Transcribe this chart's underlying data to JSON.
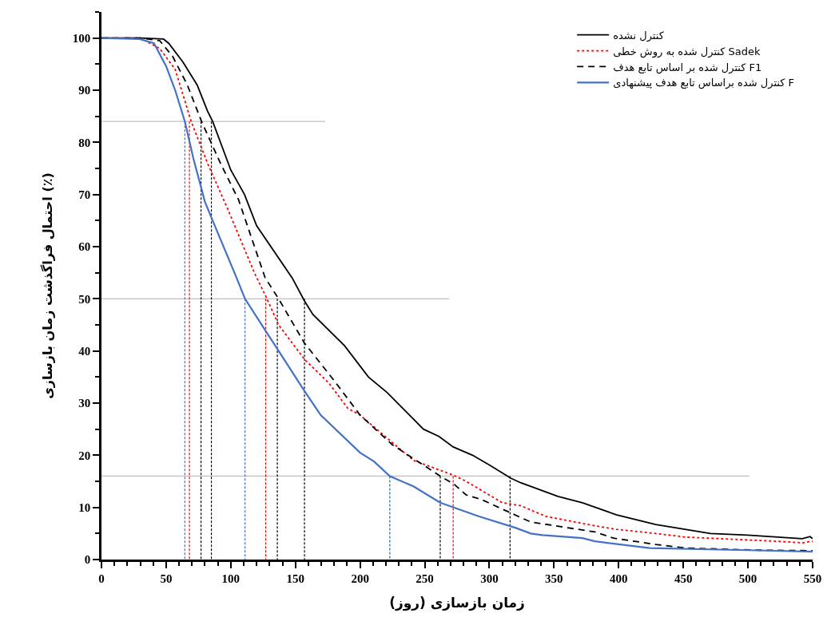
{
  "chart_data": {
    "type": "line",
    "xlabel": "زمان بازسازی (روز)",
    "ylabel": "احتمال فراگذشت زمان بازسازی (٪)",
    "xlim": [
      0,
      550
    ],
    "xticks": [
      0,
      50,
      100,
      150,
      200,
      250,
      300,
      350,
      400,
      450,
      500,
      550
    ],
    "ylim": [
      0,
      105
    ],
    "yticks": [
      0,
      10,
      20,
      30,
      40,
      50,
      60,
      70,
      80,
      90,
      100
    ],
    "legend": "top right",
    "marker": "none",
    "series": [
      {
        "color": "#bfbfbf",
        "line_style": "solid",
        "x": [
          0,
          173
        ],
        "values": [
          84,
          84
        ]
      },
      {
        "color": "#bfbfbf",
        "line_style": "solid",
        "x": [
          0,
          269
        ],
        "values": [
          50,
          50
        ]
      },
      {
        "color": "#bfbfbf",
        "line_style": "solid",
        "x": [
          0,
          501
        ],
        "values": [
          16,
          16
        ]
      },
      {
        "color": "#4472c4",
        "line_style": "dashed",
        "x": [
          64.5,
          64.5
        ],
        "values": [
          84,
          0
        ]
      },
      {
        "color": "#ff0000",
        "line_style": "dashed",
        "x": [
          68,
          68
        ],
        "values": [
          84,
          0
        ]
      },
      {
        "color": "#000000",
        "line_style": "dashed",
        "x": [
          77,
          77
        ],
        "values": [
          84,
          0
        ]
      },
      {
        "color": "#000000",
        "line_style": "dashed",
        "x": [
          85,
          85
        ],
        "values": [
          84,
          0
        ]
      },
      {
        "color": "#4472c4",
        "line_style": "dashed",
        "x": [
          111,
          111
        ],
        "values": [
          50,
          0
        ]
      },
      {
        "color": "#ff0000",
        "line_style": "dashed",
        "x": [
          127,
          127
        ],
        "values": [
          50,
          0
        ]
      },
      {
        "color": "#000000",
        "line_style": "dashed",
        "x": [
          136,
          136
        ],
        "values": [
          50,
          0
        ]
      },
      {
        "color": "#000000",
        "line_style": "dashed",
        "x": [
          157,
          157
        ],
        "values": [
          50,
          0
        ]
      },
      {
        "color": "#0070c0",
        "line_style": "dashed",
        "x": [
          223,
          223
        ],
        "values": [
          16,
          0
        ]
      },
      {
        "color": "#000000",
        "line_style": "dashed",
        "x": [
          262,
          262
        ],
        "values": [
          16,
          0
        ]
      },
      {
        "color": "#ff0000",
        "line_style": "dashed",
        "x": [
          272,
          272
        ],
        "values": [
          16,
          0
        ]
      },
      {
        "color": "#000000",
        "line_style": "dashed",
        "x": [
          316,
          316
        ],
        "values": [
          16,
          0
        ]
      },
      {
        "name": "کنترل نشده",
        "color": "#000000",
        "line_style": "solid",
        "x": [
          0,
          30,
          48,
          52,
          63,
          74,
          82,
          86,
          100,
          110.6,
          120,
          147.5,
          157,
          163.5,
          188,
          206.5,
          221,
          249,
          261,
          272,
          287,
          301,
          316.5,
          324.5,
          353,
          372,
          398,
          428.7,
          471,
          499.6,
          542,
          548,
          550
        ],
        "values": [
          100,
          100,
          99.8,
          99,
          95.4,
          91,
          86,
          84,
          74.7,
          70,
          64,
          54,
          49.6,
          47,
          41,
          35,
          32,
          25,
          23.6,
          21.6,
          20,
          18,
          15.6,
          14.7,
          12.1,
          10.9,
          8.6,
          6.7,
          5,
          4.7,
          4,
          4.4,
          4
        ]
      },
      {
        "name": "کنترل شده به روش خطی Sadek",
        "color": "#ff0000",
        "line_style": "dotted",
        "x": [
          0,
          30,
          45,
          57,
          69.4,
          82,
          98,
          118.6,
          128,
          137,
          157,
          176,
          190.5,
          200,
          227,
          241.5,
          272,
          282,
          310,
          324.5,
          343.5,
          376.7,
          398,
          428.7,
          452,
          523,
          542,
          550
        ],
        "values": [
          100,
          100,
          98,
          94,
          84,
          76,
          67,
          54.8,
          50,
          45,
          38.4,
          33.8,
          29,
          27.7,
          22,
          19,
          16.2,
          15,
          10.9,
          10.3,
          8.3,
          6.7,
          5.8,
          5,
          4.3,
          3.5,
          3.2,
          3.5
        ]
      },
      {
        "name": "کنترل شده بر اساس تابع هدف F1",
        "color": "#000000",
        "line_style": "dashed",
        "x": [
          0,
          30,
          45,
          55,
          66.4,
          77.4,
          92,
          106,
          126.6,
          137,
          157,
          180,
          200,
          225,
          262,
          273,
          282,
          294,
          317.7,
          332,
          381.6,
          396,
          428.7,
          452,
          509,
          550
        ],
        "values": [
          100,
          100,
          99.5,
          96.5,
          91,
          84,
          76,
          69,
          54,
          50,
          41.5,
          34.3,
          27.7,
          22,
          16,
          14.4,
          12.4,
          11.5,
          8.8,
          7.2,
          5.3,
          4.1,
          2.9,
          2.2,
          1.8,
          1.7
        ]
      },
      {
        "name": "کنترل شده براساس تابع هدف پیشنهادی F",
        "color": "#4472c4",
        "line_style": "solid",
        "x": [
          0,
          29.5,
          40.6,
          50,
          57,
          64.5,
          71,
          80,
          86,
          104.5,
          111,
          126.6,
          137,
          157,
          169.6,
          200,
          210.8,
          223,
          241.5,
          262,
          291.6,
          320,
          332,
          341,
          372,
          381.6,
          424,
          499.6,
          550
        ],
        "values": [
          100,
          99.8,
          99,
          94.6,
          90,
          84,
          77,
          68.6,
          65,
          54,
          50,
          44,
          40,
          32.3,
          27.7,
          20.5,
          18.8,
          16,
          14,
          10.9,
          8.3,
          6.1,
          5,
          4.7,
          4.1,
          3.5,
          2.2,
          1.8,
          1.5
        ]
      }
    ]
  }
}
